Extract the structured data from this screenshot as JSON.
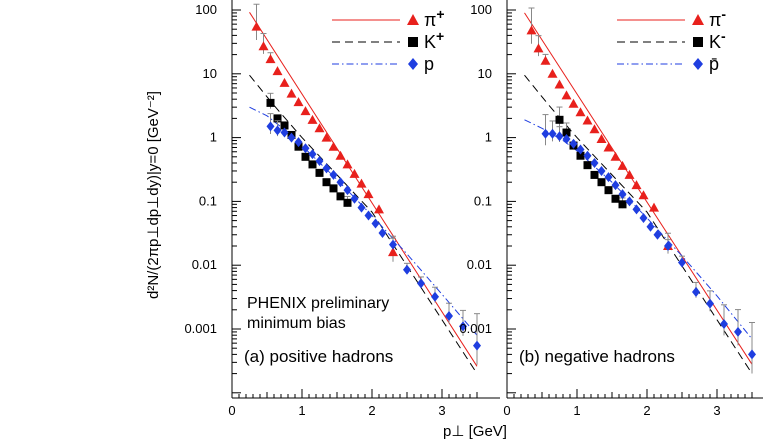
{
  "chart_data": {
    "type": "scatter",
    "yscale": "log",
    "xlim": [
      0,
      3.6
    ],
    "ylim": [
      0.00015,
      110
    ],
    "xticks": [
      "0",
      "1",
      "2",
      "3"
    ],
    "yticks": [
      "100",
      "10",
      "1",
      "0.1",
      "0.01",
      "0.001"
    ],
    "ylabel": "d²N/(2πp⊥dp⊥dy)|y=0 [GeV⁻²]",
    "xlabel": "p⊥ [GeV]",
    "annotation": [
      "PHENIX preliminary",
      "minimum bias"
    ],
    "annotation_color": "#8b1a1a",
    "colors": {
      "pion": "#e8201c",
      "kaon": "#000000",
      "proton": "#1f3ee0",
      "pion_line": "#e8201c",
      "kaon_line": "#000000",
      "proton_line": "#1f3ee0",
      "error": "#888888"
    },
    "panels": [
      {
        "title": "(a) positive hadrons",
        "legend": [
          {
            "label": "π",
            "sup": "+"
          },
          {
            "label": "K",
            "sup": "+"
          },
          {
            "label": "p",
            "sup": ""
          }
        ],
        "series": [
          {
            "name": "pi+",
            "marker": "triangle",
            "x": [
              0.35,
              0.45,
              0.55,
              0.65,
              0.75,
              0.85,
              0.95,
              1.05,
              1.15,
              1.25,
              1.35,
              1.45,
              1.55,
              1.65,
              1.75,
              1.85,
              1.95,
              2.1,
              2.3
            ],
            "y": [
              55,
              27,
              17,
              11,
              7.2,
              4.9,
              3.6,
              2.6,
              1.9,
              1.4,
              1.0,
              0.72,
              0.52,
              0.38,
              0.27,
              0.19,
              0.13,
              0.075,
              0.016
            ],
            "err": [
              0.35,
              0.2,
              0.1,
              0,
              0,
              0,
              0,
              0,
              0,
              0,
              0,
              0,
              0,
              0,
              0,
              0,
              0,
              0,
              0.25
            ]
          },
          {
            "name": "K+",
            "marker": "square",
            "x": [
              0.55,
              0.65,
              0.75,
              0.85,
              0.95,
              1.05,
              1.15,
              1.25,
              1.35,
              1.45,
              1.55,
              1.65
            ],
            "y": [
              3.5,
              2.0,
              1.55,
              1.1,
              0.72,
              0.5,
              0.38,
              0.28,
              0.2,
              0.16,
              0.12,
              0.095
            ],
            "err": [
              0.15,
              0,
              0,
              0,
              0,
              0,
              0,
              0,
              0,
              0,
              0,
              0.1
            ]
          },
          {
            "name": "p",
            "marker": "diamond",
            "x": [
              0.55,
              0.65,
              0.75,
              0.85,
              0.95,
              1.05,
              1.15,
              1.25,
              1.35,
              1.45,
              1.55,
              1.65,
              1.75,
              1.85,
              1.95,
              2.05,
              2.15,
              2.3,
              2.5,
              2.7,
              2.9,
              3.1,
              3.3,
              3.5
            ],
            "y": [
              1.5,
              1.3,
              1.2,
              1.0,
              0.85,
              0.68,
              0.55,
              0.43,
              0.33,
              0.26,
              0.2,
              0.15,
              0.11,
              0.08,
              0.06,
              0.045,
              0.032,
              0.021,
              0.0085,
              0.0052,
              0.0032,
              0.0016,
              0.0011,
              0.00055
            ],
            "err": [
              0.2,
              0.15,
              0,
              0,
              0,
              0,
              0,
              0,
              0,
              0,
              0,
              0,
              0,
              0,
              0,
              0,
              0,
              0.1,
              0.1,
              0.1,
              0.15,
              0.2,
              0.25,
              0.5
            ]
          }
        ],
        "lines": [
          {
            "name": "pi+ fit",
            "style": "solid",
            "x": [
              0.25,
              3.5
            ],
            "y": [
              92,
              0.00026
            ]
          },
          {
            "name": "K+ fit",
            "style": "dash",
            "x": [
              0.25,
              0.6,
              1.0,
              2.0,
              3.5
            ],
            "y": [
              9.5,
              3.2,
              1.0,
              0.068,
              0.0002
            ]
          },
          {
            "name": "p fit",
            "style": "dashdot",
            "x": [
              0.25,
              0.5,
              0.8,
              1.0,
              1.5,
              2.0,
              2.5,
              3.0,
              3.5
            ],
            "y": [
              3.0,
              2.2,
              1.2,
              0.75,
              0.22,
              0.06,
              0.015,
              0.0035,
              0.0008
            ]
          }
        ]
      },
      {
        "title": "(b) negative hadrons",
        "legend": [
          {
            "label": "π",
            "sup": "-"
          },
          {
            "label": "K",
            "sup": "-"
          },
          {
            "label": "p̄",
            "sup": ""
          }
        ],
        "series": [
          {
            "name": "pi-",
            "marker": "triangle",
            "x": [
              0.35,
              0.45,
              0.55,
              0.65,
              0.75,
              0.85,
              0.95,
              1.05,
              1.15,
              1.25,
              1.35,
              1.45,
              1.55,
              1.65,
              1.75,
              1.85,
              1.95,
              2.1,
              2.3
            ],
            "y": [
              48,
              25,
              16,
              10,
              6.8,
              4.6,
              3.4,
              2.5,
              1.85,
              1.35,
              0.95,
              0.7,
              0.5,
              0.36,
              0.26,
              0.18,
              0.125,
              0.08,
              0.02
            ],
            "err": [
              0.35,
              0.2,
              0.1,
              0,
              0,
              0,
              0,
              0,
              0,
              0,
              0,
              0,
              0,
              0,
              0,
              0,
              0,
              0,
              0.2
            ]
          },
          {
            "name": "K-",
            "marker": "square",
            "x": [
              0.75,
              0.85,
              0.95,
              1.05,
              1.15,
              1.25,
              1.35,
              1.45,
              1.55,
              1.65
            ],
            "y": [
              1.9,
              1.2,
              0.75,
              0.52,
              0.37,
              0.26,
              0.2,
              0.15,
              0.11,
              0.09
            ],
            "err": [
              0.2,
              0.15,
              0,
              0,
              0,
              0,
              0,
              0,
              0,
              0.1
            ]
          },
          {
            "name": "pbar",
            "marker": "diamond",
            "x": [
              0.55,
              0.65,
              0.75,
              0.85,
              0.95,
              1.05,
              1.15,
              1.25,
              1.35,
              1.45,
              1.55,
              1.65,
              1.75,
              1.85,
              1.95,
              2.05,
              2.15,
              2.3,
              2.5,
              2.7,
              2.9,
              3.1,
              3.3,
              3.5
            ],
            "y": [
              1.15,
              1.15,
              1.05,
              0.95,
              0.8,
              0.65,
              0.52,
              0.4,
              0.3,
              0.24,
              0.18,
              0.13,
              0.1,
              0.075,
              0.055,
              0.04,
              0.03,
              0.02,
              0.011,
              0.0038,
              0.0025,
              0.0012,
              0.0009,
              0.0004
            ],
            "err": [
              0.3,
              0.2,
              0.15,
              0,
              0,
              0,
              0,
              0,
              0,
              0,
              0,
              0,
              0,
              0,
              0,
              0,
              0,
              0.1,
              0.1,
              0.15,
              0.2,
              0.3,
              0.35,
              0.5
            ]
          }
        ],
        "lines": [
          {
            "name": "pi- fit",
            "style": "solid",
            "x": [
              0.25,
              3.5
            ],
            "y": [
              90,
              0.00028
            ]
          },
          {
            "name": "K- fit",
            "style": "dash",
            "x": [
              0.25,
              0.6,
              1.0,
              2.0,
              3.5
            ],
            "y": [
              9.5,
              3.2,
              1.0,
              0.068,
              0.0002
            ]
          },
          {
            "name": "pbar fit",
            "style": "dashdot",
            "x": [
              0.25,
              0.5,
              0.8,
              1.0,
              1.5,
              2.0,
              2.5,
              3.0,
              3.5
            ],
            "y": [
              1.9,
              1.4,
              0.9,
              0.62,
              0.2,
              0.055,
              0.014,
              0.0033,
              0.0007
            ]
          }
        ]
      }
    ]
  }
}
